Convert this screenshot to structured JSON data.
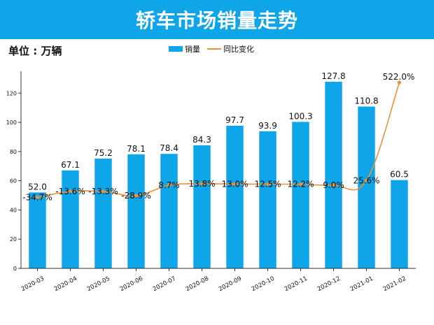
{
  "header": {
    "title": "轿车市场销量走势",
    "unit": "单位 : 万辆"
  },
  "colors": {
    "banner": "#0ea5e9",
    "bar": "#0ea5e9",
    "line": "#e8923a"
  },
  "chart_data": {
    "type": "bar",
    "title": "轿车市场销量走势",
    "unit": "单位 : 万辆",
    "categories": [
      "2020-03",
      "2020-04",
      "2020-05",
      "2020-06",
      "2020-07",
      "2020-08",
      "2020-09",
      "2020-10",
      "2020-11",
      "2020-12",
      "2021-01",
      "2021-02"
    ],
    "series": [
      {
        "name": "销量",
        "type": "bar",
        "axis": "left",
        "values": [
          52.0,
          67.1,
          75.2,
          78.1,
          78.4,
          84.3,
          97.7,
          93.9,
          100.3,
          127.8,
          110.8,
          60.5
        ],
        "labels": [
          "52.0",
          "67.1",
          "75.2",
          "78.1",
          "78.4",
          "84.3",
          "97.7",
          "93.9",
          "100.3",
          "127.8",
          "110.8",
          "60.5"
        ]
      },
      {
        "name": "同比变化",
        "type": "line",
        "axis": "secondary",
        "values": [
          -34.7,
          -13.6,
          -13.3,
          -28.9,
          8.7,
          13.8,
          13.0,
          12.5,
          12.2,
          9.0,
          25.6,
          522.0
        ],
        "labels": [
          "-34.7%",
          "-13.6%",
          "-13.3%",
          "-28.9%",
          "8.7%",
          "13.8%",
          "13.0%",
          "12.5%",
          "12.2%",
          "9.0%",
          "25.6%",
          "522.0%"
        ]
      }
    ],
    "yticks": [
      0,
      20,
      40,
      60,
      80,
      100,
      120
    ],
    "ylim": [
      0,
      134
    ],
    "legend": [
      "销量",
      "同比变化"
    ],
    "legend_position": "top-center"
  }
}
